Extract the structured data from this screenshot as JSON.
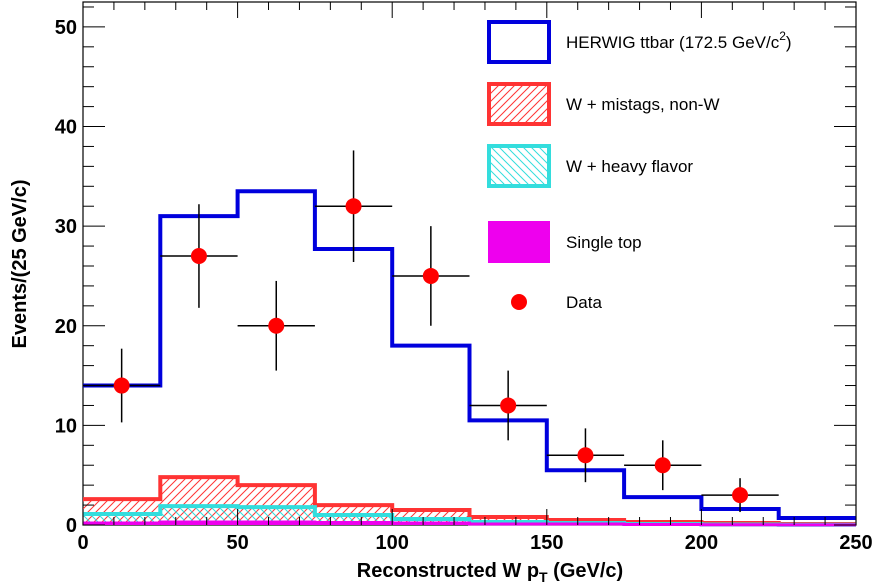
{
  "chart_data": {
    "type": "histogram",
    "xlabel": "Reconstructed W p",
    "xlabel_sub": "T",
    "xlabel_unit": " (GeV/c)",
    "ylabel": "Events/(25 GeV/c)",
    "xlim": [
      0,
      250
    ],
    "ylim": [
      0,
      52.5
    ],
    "x_ticks": [
      0,
      50,
      100,
      150,
      200,
      250
    ],
    "y_ticks": [
      0,
      10,
      20,
      30,
      40,
      50
    ],
    "bin_edges": [
      0,
      25,
      50,
      75,
      100,
      125,
      150,
      175,
      200,
      225,
      250
    ],
    "series": [
      {
        "name": "HERWIG ttbar (172.5 GeV/c",
        "name_sup": "2",
        "name_tail": ")",
        "kind": "step",
        "color": "#0000dd",
        "values": [
          14,
          31,
          33.5,
          27.7,
          18,
          10.5,
          5.5,
          2.8,
          1.6,
          0.7
        ]
      },
      {
        "name": "W + mistags, non-W",
        "kind": "hatched",
        "color": "#ff3333",
        "values": [
          2.6,
          4.8,
          4.0,
          2.0,
          1.5,
          0.8,
          0.5,
          0.3,
          0.2,
          0.1
        ]
      },
      {
        "name": "W + heavy flavor",
        "kind": "hatched",
        "color": "#33dddd",
        "values": [
          1.1,
          1.9,
          1.8,
          1.0,
          0.6,
          0.3,
          0.2,
          0.1,
          0.05,
          0.02
        ]
      },
      {
        "name": "Single top",
        "kind": "filled",
        "color": "#ee00ee",
        "values": [
          0.2,
          0.3,
          0.3,
          0.25,
          0.2,
          0.1,
          0.1,
          0.05,
          0.02,
          0.01
        ]
      }
    ],
    "data_points": {
      "name": "Data",
      "color": "#ff0000",
      "x": [
        12.5,
        37.5,
        62.5,
        87.5,
        112.5,
        137.5,
        162.5,
        187.5,
        212.5
      ],
      "y": [
        14,
        27,
        20,
        32,
        25,
        12,
        7,
        6,
        3
      ],
      "y_err_low": [
        3.7,
        5.2,
        4.5,
        5.6,
        5.0,
        3.5,
        2.7,
        2.5,
        1.7
      ],
      "y_err_high": [
        3.7,
        5.2,
        4.5,
        5.6,
        5.0,
        3.5,
        2.7,
        2.5,
        1.7
      ],
      "x_err": 12.5
    },
    "legend_position": "top-right"
  }
}
